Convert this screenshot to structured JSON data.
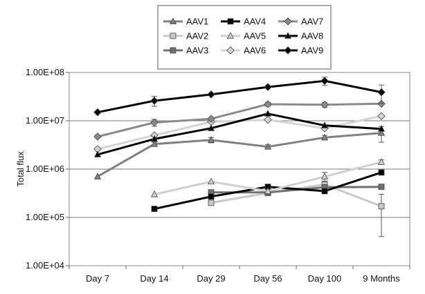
{
  "chart_data": {
    "type": "line",
    "title": "",
    "xlabel": "",
    "ylabel": "Total flux",
    "yscale": "log",
    "ylim": [
      10000,
      100000000
    ],
    "yticks": [
      {
        "value": 10000,
        "label": "1.00E+04"
      },
      {
        "value": 100000,
        "label": "1.00E+05"
      },
      {
        "value": 1000000,
        "label": "1.00E+06"
      },
      {
        "value": 10000000,
        "label": "1.00E+07"
      },
      {
        "value": 100000000,
        "label": "1.00E+08"
      }
    ],
    "categories": [
      "Day 7",
      "Day 14",
      "Day 29",
      "Day 56",
      "Day 100",
      "9 Months"
    ],
    "legend_position": "top",
    "series": [
      {
        "name": "AAV1",
        "color": "#808080",
        "width": 3,
        "marker": "triangle",
        "marker_fill": "#808080",
        "values": [
          700000,
          3300000,
          4000000,
          2900000,
          4500000,
          5600000
        ],
        "errors": [
          0,
          300000,
          500000,
          300000,
          500000,
          2000000
        ]
      },
      {
        "name": "AAV2",
        "color": "#c8c8c8",
        "width": 3,
        "marker": "square",
        "marker_fill": "#c8c8c8",
        "values": [
          null,
          null,
          200000,
          320000,
          480000,
          170000
        ],
        "errors": [
          0,
          0,
          0,
          0,
          80000,
          130000
        ]
      },
      {
        "name": "AAV3",
        "color": "#707070",
        "width": 3,
        "marker": "square",
        "marker_fill": "#707070",
        "values": [
          null,
          null,
          330000,
          330000,
          420000,
          430000
        ],
        "errors": [
          0,
          0,
          0,
          0,
          0,
          0
        ]
      },
      {
        "name": "AAV4",
        "color": "#000000",
        "width": 3,
        "marker": "square",
        "marker_fill": "#000000",
        "values": [
          null,
          150000,
          270000,
          430000,
          350000,
          850000
        ],
        "errors": [
          0,
          0,
          0,
          0,
          0,
          0
        ]
      },
      {
        "name": "AAV5",
        "color": "#cfcfcf",
        "width": 3,
        "marker": "triangle",
        "marker_fill": "#cfcfcf",
        "values": [
          null,
          300000,
          550000,
          350000,
          700000,
          1400000
        ],
        "errors": [
          0,
          0,
          0,
          0,
          150000,
          150000
        ]
      },
      {
        "name": "AAV6",
        "color": "#d4d4d4",
        "width": 3,
        "marker": "diamond",
        "marker_fill": "#d4d4d4",
        "values": [
          2600000,
          5000000,
          9500000,
          10500000,
          7000000,
          12500000
        ],
        "errors": [
          0,
          0,
          0,
          0,
          0,
          0
        ]
      },
      {
        "name": "AAV7",
        "color": "#8a8a8a",
        "width": 3,
        "marker": "diamond",
        "marker_fill": "#8a8a8a",
        "values": [
          4700000,
          9200000,
          11000000,
          22000000,
          21500000,
          22500000
        ],
        "errors": [
          0,
          1500000,
          0,
          2000000,
          2500000,
          0
        ]
      },
      {
        "name": "AAV8",
        "color": "#000000",
        "width": 3,
        "marker": "triangle",
        "marker_fill": "#000000",
        "values": [
          2000000,
          4200000,
          7000000,
          14000000,
          8000000,
          6800000
        ],
        "errors": [
          0,
          0,
          0,
          0,
          0,
          0
        ]
      },
      {
        "name": "AAV9",
        "color": "#000000",
        "width": 3,
        "marker": "diamond",
        "marker_fill": "#000000",
        "values": [
          15000000,
          26000000,
          35000000,
          50000000,
          67000000,
          39000000
        ],
        "errors": [
          0,
          6000000,
          0,
          0,
          13000000,
          16000000
        ]
      }
    ]
  }
}
